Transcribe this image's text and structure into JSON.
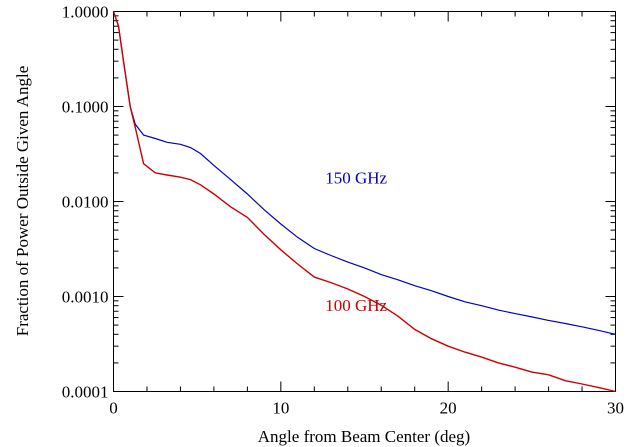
{
  "chart_data": {
    "type": "line",
    "title": "",
    "xlabel": "Angle from Beam Center (deg)",
    "ylabel": "Fraction of Power Outside Given Angle",
    "xlim": [
      0,
      30
    ],
    "ylim": [
      0.0001,
      1.0
    ],
    "yscale": "log",
    "grid": false,
    "x_ticks": [
      {
        "value": 0,
        "label": "0"
      },
      {
        "value": 10,
        "label": "10"
      },
      {
        "value": 20,
        "label": "20"
      },
      {
        "value": 30,
        "label": "30"
      }
    ],
    "x_minor_step": 2,
    "y_ticks": [
      {
        "value": 1.0,
        "label": "1.0000"
      },
      {
        "value": 0.1,
        "label": "0.1000"
      },
      {
        "value": 0.01,
        "label": "0.0100"
      },
      {
        "value": 0.001,
        "label": "0.0010"
      },
      {
        "value": 0.0001,
        "label": "0.0001"
      }
    ],
    "series": [
      {
        "name": "150 GHz",
        "color": "#0000cc",
        "x": [
          0,
          0.3,
          0.6,
          1.0,
          1.3,
          1.8,
          2.5,
          3.2,
          4.0,
          4.6,
          5.2,
          6.0,
          7.0,
          8.0,
          9.0,
          10.0,
          11.0,
          12.0,
          13.0,
          14.0,
          15.0,
          16.0,
          17.0,
          18.0,
          19.0,
          20.0,
          21.0,
          22.0,
          23.0,
          24.0,
          25.0,
          26.0,
          27.0,
          28.0,
          29.0,
          30.0
        ],
        "y": [
          1.0,
          0.7,
          0.3,
          0.1,
          0.065,
          0.05,
          0.046,
          0.042,
          0.04,
          0.037,
          0.032,
          0.024,
          0.017,
          0.012,
          0.0082,
          0.0058,
          0.0042,
          0.0032,
          0.0027,
          0.0023,
          0.002,
          0.0017,
          0.0015,
          0.0013,
          0.00115,
          0.001,
          0.00088,
          0.0008,
          0.00072,
          0.00066,
          0.00061,
          0.00056,
          0.00052,
          0.00048,
          0.00044,
          0.0004
        ]
      },
      {
        "name": "100 GHz",
        "color": "#cc0000",
        "x": [
          0,
          0.3,
          0.6,
          1.0,
          1.3,
          1.8,
          2.5,
          3.2,
          4.0,
          4.6,
          5.2,
          6.0,
          7.0,
          8.0,
          9.0,
          10.0,
          11.0,
          12.0,
          13.0,
          14.0,
          15.0,
          16.0,
          17.0,
          18.0,
          19.0,
          20.0,
          21.0,
          22.0,
          23.0,
          24.0,
          25.0,
          26.0,
          27.0,
          28.0,
          29.0,
          30.0
        ],
        "y": [
          1.0,
          0.7,
          0.3,
          0.1,
          0.06,
          0.025,
          0.02,
          0.019,
          0.018,
          0.017,
          0.015,
          0.012,
          0.0088,
          0.0068,
          0.0045,
          0.0031,
          0.0022,
          0.0016,
          0.0014,
          0.0012,
          0.001,
          0.00081,
          0.00062,
          0.00045,
          0.00036,
          0.0003,
          0.00026,
          0.00023,
          0.0002,
          0.00018,
          0.00016,
          0.00015,
          0.00013,
          0.00012,
          0.00011,
          0.0001
        ]
      }
    ],
    "series_labels": [
      {
        "text": "150 GHz",
        "color": "#0000cc",
        "x": 14.5,
        "y": 0.0155
      },
      {
        "text": "100 GHz",
        "color": "#cc0000",
        "x": 14.5,
        "y": 0.0007
      }
    ]
  }
}
